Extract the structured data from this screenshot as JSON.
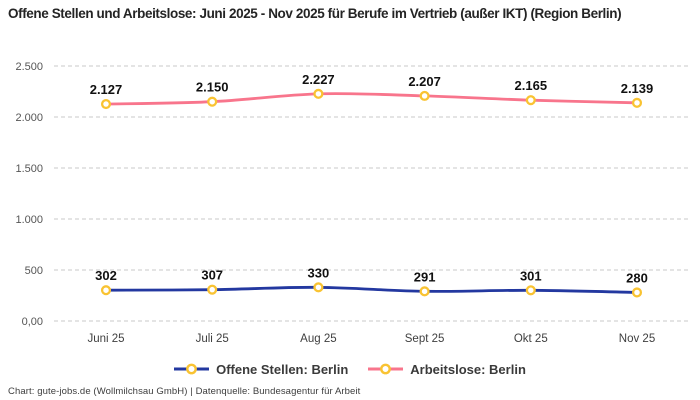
{
  "title": "Offene Stellen und Arbeitslose: Juni 2025 - Nov 2025 für Berufe im Vertrieb (außer IKT) (Region Berlin)",
  "footer": "Chart: gute-jobs.de (Wollmilchsau GmbH) | Datenquelle: Bundesagentur für Arbeit",
  "colors": {
    "grid": "#c9c9c9",
    "axis_tick_text": "#555555",
    "x_label_text": "#3f3f3f",
    "data_label_text": "#111111",
    "marker_ring": "#f9c332",
    "marker_fill": "#ffffff",
    "background": "#ffffff"
  },
  "chart_data": {
    "type": "line",
    "categories": [
      "Juni 25",
      "Juli 25",
      "Aug 25",
      "Sept 25",
      "Okt 25",
      "Nov 25"
    ],
    "series": [
      {
        "name": "Offene Stellen: Berlin",
        "color": "#2338a0",
        "values": [
          302,
          307,
          330,
          291,
          301,
          280
        ],
        "labels": [
          "302",
          "307",
          "330",
          "291",
          "301",
          "280"
        ]
      },
      {
        "name": "Arbeitslose: Berlin",
        "color": "#f8758c",
        "values": [
          2127,
          2150,
          2227,
          2207,
          2165,
          2139
        ],
        "labels": [
          "2.127",
          "2.150",
          "2.227",
          "2.207",
          "2.165",
          "2.139"
        ]
      }
    ],
    "ylim": [
      0,
      2500
    ],
    "yticks": [
      {
        "value": 0,
        "label": "0,00"
      },
      {
        "value": 500,
        "label": "500"
      },
      {
        "value": 1000,
        "label": "1.000"
      },
      {
        "value": 1500,
        "label": "1.500"
      },
      {
        "value": 2000,
        "label": "2.000"
      },
      {
        "value": 2500,
        "label": "2.500"
      }
    ],
    "grid": "horizontal-dashed",
    "legend_position": "bottom",
    "xlabel": "",
    "ylabel": ""
  }
}
